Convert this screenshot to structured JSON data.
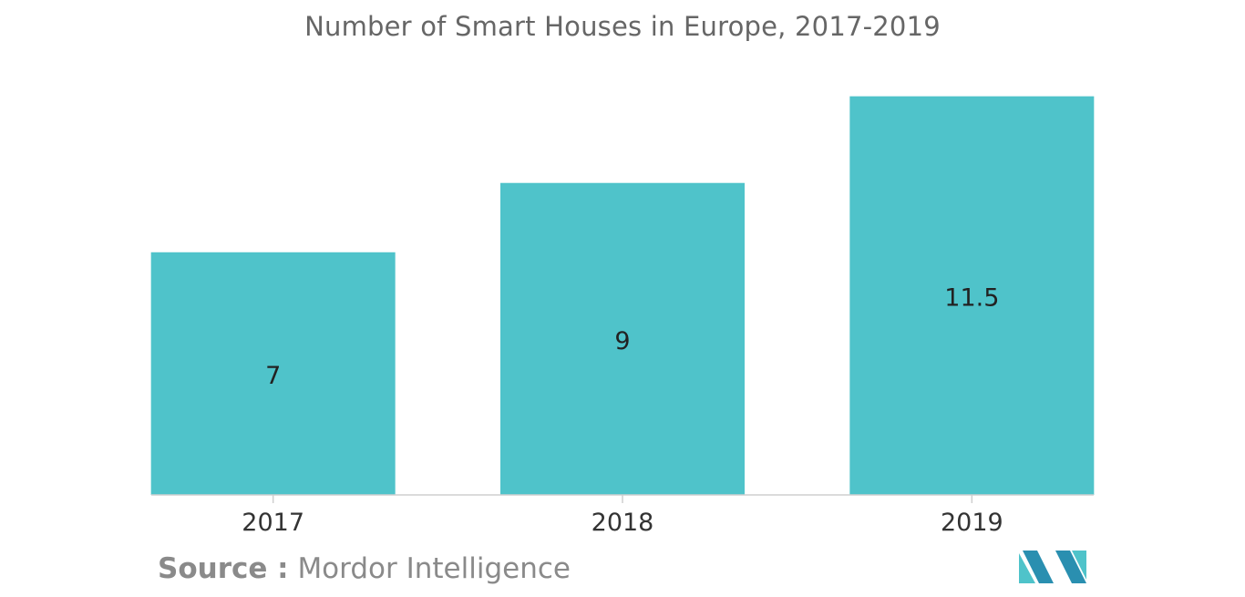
{
  "chart_data": {
    "type": "bar",
    "title": "Number of Smart Houses in Europe, 2017-2019",
    "categories": [
      "2017",
      "2018",
      "2019"
    ],
    "values": [
      7,
      9,
      11.5
    ],
    "data_labels": [
      "7",
      "9",
      "11.5"
    ],
    "ylim": [
      0,
      12.7
    ],
    "xlabel": "",
    "ylabel": "",
    "grid": false,
    "bar_color": "#4fc3ca"
  },
  "source": {
    "label": "Source :",
    "text": "Mordor Intelligence"
  },
  "colors": {
    "title": "#666666",
    "axis": "#cfcfcf",
    "tick_text": "#333333",
    "logo_dark": "#2a8fb0",
    "logo_light": "#4fc3ca"
  },
  "logo": {
    "icon": "mordor-intelligence-logo"
  }
}
